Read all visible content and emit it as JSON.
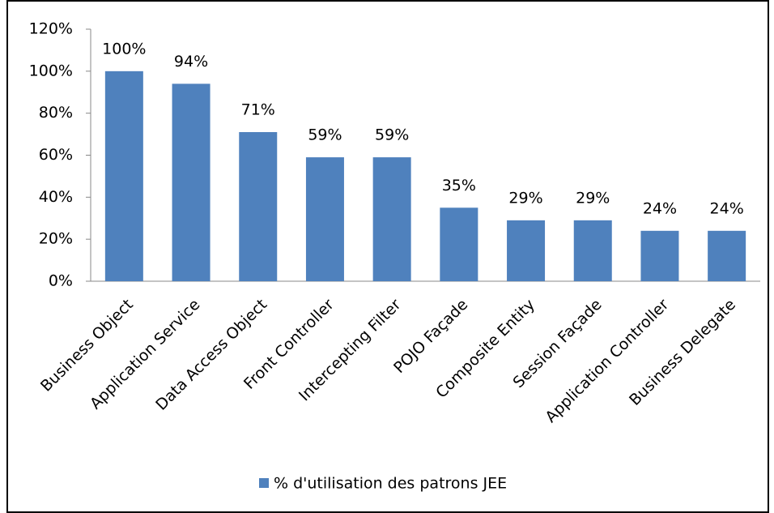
{
  "chart_data": {
    "type": "bar",
    "categories": [
      "Business Object",
      "Application Service",
      "Data Access Object",
      "Front Controller",
      "Intercepting Filter",
      "POJO Façade",
      "Composite Entity",
      "Session Façade",
      "Application Controller",
      "Business Delegate"
    ],
    "series": [
      {
        "name": "% d'utilisation des patrons JEE",
        "color": "#4f81bd",
        "values": [
          100,
          94,
          71,
          59,
          59,
          35,
          29,
          29,
          24,
          24
        ],
        "value_labels": [
          "100%",
          "94%",
          "71%",
          "59%",
          "59%",
          "35%",
          "29%",
          "29%",
          "24%",
          "24%"
        ]
      }
    ],
    "ylim": [
      0,
      120
    ],
    "yticks": [
      {
        "value": 0,
        "label": "0%"
      },
      {
        "value": 20,
        "label": "20%"
      },
      {
        "value": 40,
        "label": "40%"
      },
      {
        "value": 60,
        "label": "60%"
      },
      {
        "value": 80,
        "label": "80%"
      },
      {
        "value": 100,
        "label": "100%"
      },
      {
        "value": 120,
        "label": "120%"
      }
    ],
    "legend": "bottom"
  }
}
